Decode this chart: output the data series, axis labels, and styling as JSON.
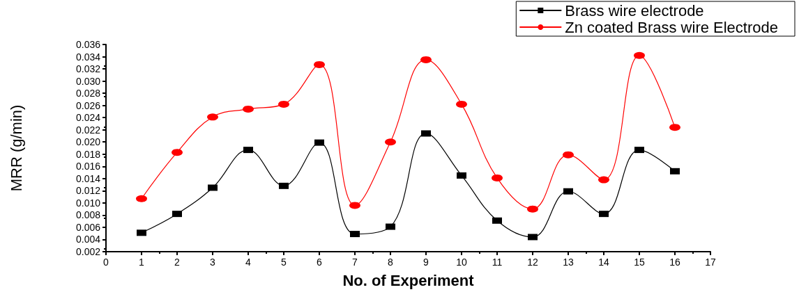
{
  "chart_data": {
    "type": "line",
    "xlabel": "No. of Experiment",
    "ylabel": "MRR (g/min)",
    "x": [
      1,
      2,
      3,
      4,
      5,
      6,
      7,
      8,
      9,
      10,
      11,
      12,
      13,
      14,
      15,
      16
    ],
    "series": [
      {
        "name": "Brass wire electrode",
        "color": "#000000",
        "marker": "square",
        "values": [
          0.0051,
          0.0082,
          0.0125,
          0.0187,
          0.0128,
          0.0199,
          0.0049,
          0.0061,
          0.0214,
          0.0145,
          0.0071,
          0.0044,
          0.0119,
          0.0082,
          0.0187,
          0.0152
        ]
      },
      {
        "name": "Zn coated Brass wire Electrode",
        "color": "#ff0000",
        "marker": "circle",
        "values": [
          0.0107,
          0.0183,
          0.0241,
          0.0254,
          0.0262,
          0.0327,
          0.0096,
          0.02,
          0.0335,
          0.0262,
          0.0141,
          0.009,
          0.0179,
          0.0138,
          0.0342,
          0.0224
        ]
      }
    ],
    "xlim": [
      0,
      17
    ],
    "xticks": [
      0,
      1,
      2,
      3,
      4,
      5,
      6,
      7,
      8,
      9,
      10,
      11,
      12,
      13,
      14,
      15,
      16,
      17
    ],
    "ylim": [
      0.002,
      0.036
    ],
    "yticks": [
      {
        "value": 0.002,
        "label": "0.002"
      },
      {
        "value": 0.004,
        "label": "0.004"
      },
      {
        "value": 0.006,
        "label": "0.006"
      },
      {
        "value": 0.008,
        "label": "0.008"
      },
      {
        "value": 0.01,
        "label": "0.010"
      },
      {
        "value": 0.012,
        "label": "0.012"
      },
      {
        "value": 0.014,
        "label": "0.014"
      },
      {
        "value": 0.016,
        "label": "0.016"
      },
      {
        "value": 0.018,
        "label": "0.018"
      },
      {
        "value": 0.02,
        "label": "0.020"
      },
      {
        "value": 0.022,
        "label": "0.022"
      },
      {
        "value": 0.024,
        "label": "0.024"
      },
      {
        "value": 0.026,
        "label": "0.026"
      },
      {
        "value": 0.028,
        "label": "0.028"
      },
      {
        "value": 0.03,
        "label": "0.030"
      },
      {
        "value": 0.032,
        "label": "0.032"
      },
      {
        "value": 0.034,
        "label": "0.034"
      },
      {
        "value": 0.036,
        "label": "0.036"
      }
    ],
    "legend": "top right",
    "grid": false,
    "line_style": "solid"
  }
}
